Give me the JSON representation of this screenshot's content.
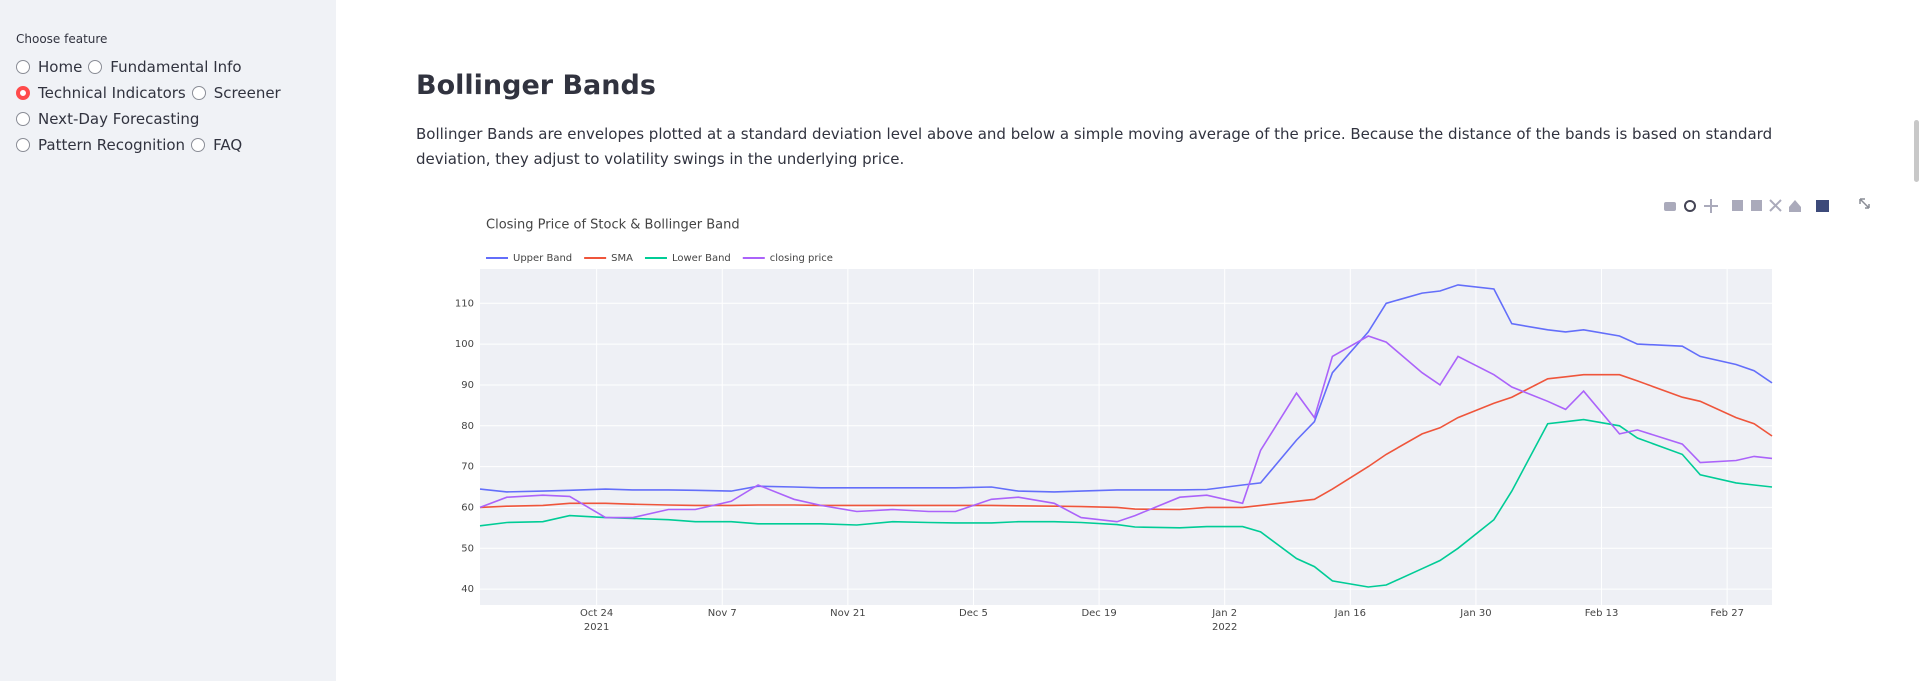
{
  "sidebar": {
    "label": "Choose feature",
    "options": [
      "Home",
      "Fundamental Info",
      "Technical Indicators",
      "Screener",
      "Next-Day Forecasting",
      "Pattern Recognition",
      "FAQ"
    ],
    "selected": 2
  },
  "header": {
    "title": "Bollinger Bands"
  },
  "description": "Bollinger Bands are envelopes plotted at a standard deviation level above and below a simple moving average of the price. Because the distance of the bands is based on standard deviation, they adjust to volatility swings in the underlying price.",
  "chart_data": {
    "type": "line",
    "title": "Closing Price of Stock & Bollinger Band",
    "x": [
      "2021-10-11",
      "2021-10-14",
      "2021-10-18",
      "2021-10-21",
      "2021-10-25",
      "2021-10-28",
      "2021-11-01",
      "2021-11-04",
      "2021-11-08",
      "2021-11-11",
      "2021-11-15",
      "2021-11-18",
      "2021-11-22",
      "2021-11-26",
      "2021-11-30",
      "2021-12-03",
      "2021-12-07",
      "2021-12-10",
      "2021-12-14",
      "2021-12-17",
      "2021-12-21",
      "2021-12-23",
      "2021-12-28",
      "2021-12-31",
      "2022-01-04",
      "2022-01-06",
      "2022-01-10",
      "2022-01-12",
      "2022-01-14",
      "2022-01-18",
      "2022-01-20",
      "2022-01-24",
      "2022-01-26",
      "2022-01-28",
      "2022-02-01",
      "2022-02-03",
      "2022-02-07",
      "2022-02-09",
      "2022-02-11",
      "2022-02-15",
      "2022-02-17",
      "2022-02-22",
      "2022-02-24",
      "2022-02-28",
      "2022-03-02",
      "2022-03-04"
    ],
    "series": [
      {
        "name": "Upper Band",
        "color": "#636efa",
        "values": [
          64.5,
          63.8,
          64,
          64.2,
          64.5,
          64.3,
          64.3,
          64.2,
          64,
          65.2,
          65,
          64.8,
          64.8,
          64.8,
          64.8,
          64.8,
          65,
          64,
          63.8,
          64,
          64.3,
          64.3,
          64.3,
          64.4,
          65.5,
          66,
          76.5,
          81,
          93,
          103,
          110,
          112.5,
          113,
          114.5,
          113.5,
          105,
          103.5,
          103,
          103.5,
          102,
          100,
          99.5,
          97,
          95,
          93.5,
          90.5
        ]
      },
      {
        "name": "SMA",
        "color": "#ef553b",
        "values": [
          60,
          60.3,
          60.5,
          61,
          61,
          60.8,
          60.6,
          60.5,
          60.5,
          60.6,
          60.6,
          60.5,
          60.5,
          60.5,
          60.5,
          60.5,
          60.5,
          60.4,
          60.3,
          60.2,
          60,
          59.6,
          59.5,
          60,
          60,
          60.5,
          61.5,
          62,
          64.5,
          70,
          73,
          78,
          79.5,
          82,
          85.5,
          87,
          91.5,
          92,
          92.5,
          92.5,
          91,
          87,
          86,
          82,
          80.5,
          77.5
        ]
      },
      {
        "name": "Lower Band",
        "color": "#00cc96",
        "values": [
          55.5,
          56.3,
          56.5,
          58,
          57.5,
          57.3,
          57,
          56.5,
          56.5,
          56,
          56,
          56,
          55.7,
          56.5,
          56.3,
          56.2,
          56.2,
          56.5,
          56.5,
          56.3,
          55.8,
          55.2,
          55,
          55.3,
          55.3,
          54,
          47.5,
          45.5,
          42,
          40.5,
          41,
          45,
          47,
          50,
          57,
          64,
          80.5,
          81,
          81.5,
          80,
          77,
          73,
          68,
          66,
          65.5,
          65
        ]
      },
      {
        "name": "closing price",
        "color": "#ab63fa",
        "values": [
          60,
          62.5,
          63,
          62.7,
          57.5,
          57.5,
          59.5,
          59.5,
          61.5,
          65.5,
          62,
          60.5,
          59,
          59.5,
          59,
          59,
          62,
          62.5,
          61,
          57.5,
          56.5,
          58,
          62.5,
          63,
          61,
          74,
          88,
          82,
          97,
          102,
          100.5,
          93,
          90,
          97,
          92.5,
          89.5,
          86,
          84,
          88.5,
          78,
          79,
          75.5,
          71,
          71.5,
          72.5,
          72
        ]
      }
    ],
    "xlim": [
      "2021-10-11",
      "2022-03-04"
    ],
    "xticks": [
      {
        "value": "2021-10-24",
        "label": "Oct 24\n2021"
      },
      {
        "value": "2021-11-07",
        "label": "Nov 7"
      },
      {
        "value": "2021-11-21",
        "label": "Nov 21"
      },
      {
        "value": "2021-12-05",
        "label": "Dec 5"
      },
      {
        "value": "2021-12-19",
        "label": "Dec 19"
      },
      {
        "value": "2022-01-02",
        "label": "Jan 2\n2022"
      },
      {
        "value": "2022-01-16",
        "label": "Jan 16"
      },
      {
        "value": "2022-01-30",
        "label": "Jan 30"
      },
      {
        "value": "2022-02-13",
        "label": "Feb 13"
      },
      {
        "value": "2022-02-27",
        "label": "Feb 27"
      }
    ],
    "ylim": [
      36.1,
      118.4
    ],
    "yticks": [
      40,
      50,
      60,
      70,
      80,
      90,
      100,
      110
    ],
    "grid": true
  }
}
